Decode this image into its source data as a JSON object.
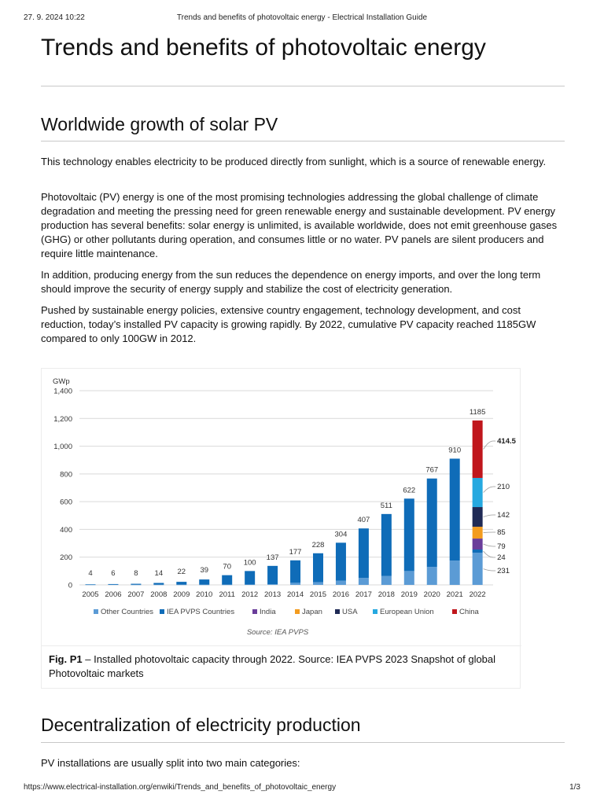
{
  "print_header": {
    "datetime": "27. 9. 2024 10:22",
    "title": "Trends and benefits of photovoltaic energy - Electrical Installation Guide"
  },
  "page_title": "Trends and benefits of photovoltaic energy",
  "section1": {
    "heading": "Worldwide growth of solar PV",
    "paragraphs": [
      "This technology enables electricity to be produced directly from sunlight, which is a source of renewable energy.",
      "Photovoltaic (PV) energy is one of the most promising technologies addressing the global challenge of climate degradation and meeting the pressing need for green renewable energy and sustainable development. PV energy production has several benefits: solar energy is unlimited, is available worldwide, does not emit greenhouse gases (GHG) or other pollutants during operation, and consumes little or no water. PV panels are silent producers and require little maintenance.",
      "In addition, producing energy from the sun reduces the dependence on energy imports, and over the long term should improve the security of energy supply and stabilize the cost of electricity generation.",
      "Pushed by sustainable energy policies, extensive country engagement, technology development, and cost reduction, today’s installed PV capacity is growing rapidly. By 2022, cumulative PV capacity reached 1185GW compared to only 100GW in 2012."
    ]
  },
  "figure": {
    "caption_label": "Fig. P1",
    "caption_text": " – Installed photovoltaic capacity through 2022. Source: IEA PVPS 2023 Snapshot of global Photovoltaic markets"
  },
  "chart_data": {
    "type": "bar",
    "stacked": true,
    "ylabel": "GWp",
    "ylim": [
      0,
      1400
    ],
    "yticks": [
      "0",
      "200",
      "400",
      "600",
      "800",
      "1,000",
      "1,200",
      "1,400"
    ],
    "grid": true,
    "legend_position": "bottom",
    "source": "Source: IEA PVPS",
    "categories": [
      "2005",
      "2006",
      "2007",
      "2008",
      "2009",
      "2010",
      "2011",
      "2012",
      "2013",
      "2014",
      "2015",
      "2016",
      "2017",
      "2018",
      "2019",
      "2020",
      "2021",
      "2022"
    ],
    "totals": [
      4,
      6,
      8,
      14,
      22,
      39,
      70,
      100,
      137,
      177,
      228,
      304,
      407,
      511,
      622,
      767,
      910,
      1185
    ],
    "total_labels": [
      "4",
      "6",
      "8",
      "14",
      "22",
      "39",
      "70",
      "100",
      "137",
      "177",
      "228",
      "304",
      "407",
      "511",
      "622",
      "767",
      "910",
      "1185"
    ],
    "series": [
      {
        "name": "Other Countries",
        "color": "#5b9bd5",
        "values": [
          2,
          3,
          2,
          2,
          2,
          2,
          2,
          3,
          5,
          15,
          20,
          30,
          50,
          65,
          100,
          130,
          175,
          231
        ]
      },
      {
        "name": "IEA PVPS Countries",
        "color": "#0f6cb8",
        "values": [
          2,
          3,
          6,
          12,
          20,
          37,
          68,
          97,
          132,
          162,
          208,
          274,
          357,
          446,
          522,
          637,
          735,
          24
        ]
      },
      {
        "name": "India",
        "color": "#6a3d9a",
        "values": [
          0,
          0,
          0,
          0,
          0,
          0,
          0,
          0,
          0,
          0,
          0,
          0,
          0,
          0,
          0,
          0,
          0,
          79
        ]
      },
      {
        "name": "Japan",
        "color": "#f39c1f",
        "values": [
          0,
          0,
          0,
          0,
          0,
          0,
          0,
          0,
          0,
          0,
          0,
          0,
          0,
          0,
          0,
          0,
          0,
          85
        ]
      },
      {
        "name": "USA",
        "color": "#1f2a55",
        "values": [
          0,
          0,
          0,
          0,
          0,
          0,
          0,
          0,
          0,
          0,
          0,
          0,
          0,
          0,
          0,
          0,
          0,
          142
        ]
      },
      {
        "name": "European Union",
        "color": "#26a9e0",
        "values": [
          0,
          0,
          0,
          0,
          0,
          0,
          0,
          0,
          0,
          0,
          0,
          0,
          0,
          0,
          0,
          0,
          0,
          210
        ]
      },
      {
        "name": "China",
        "color": "#c0161c",
        "values": [
          0,
          0,
          0,
          0,
          0,
          0,
          0,
          0,
          0,
          0,
          0,
          0,
          0,
          0,
          0,
          0,
          0,
          414.5
        ]
      }
    ],
    "segment_labels_2022": [
      "231",
      "24",
      "79",
      "85",
      "142",
      "210",
      "414.5"
    ]
  },
  "section2": {
    "heading": "Decentralization of electricity production",
    "paragraph": "PV installations are usually split into two main categories:"
  },
  "print_footer": {
    "url": "https://www.electrical-installation.org/enwiki/Trends_and_benefits_of_photovoltaic_energy",
    "page": "1/3"
  }
}
